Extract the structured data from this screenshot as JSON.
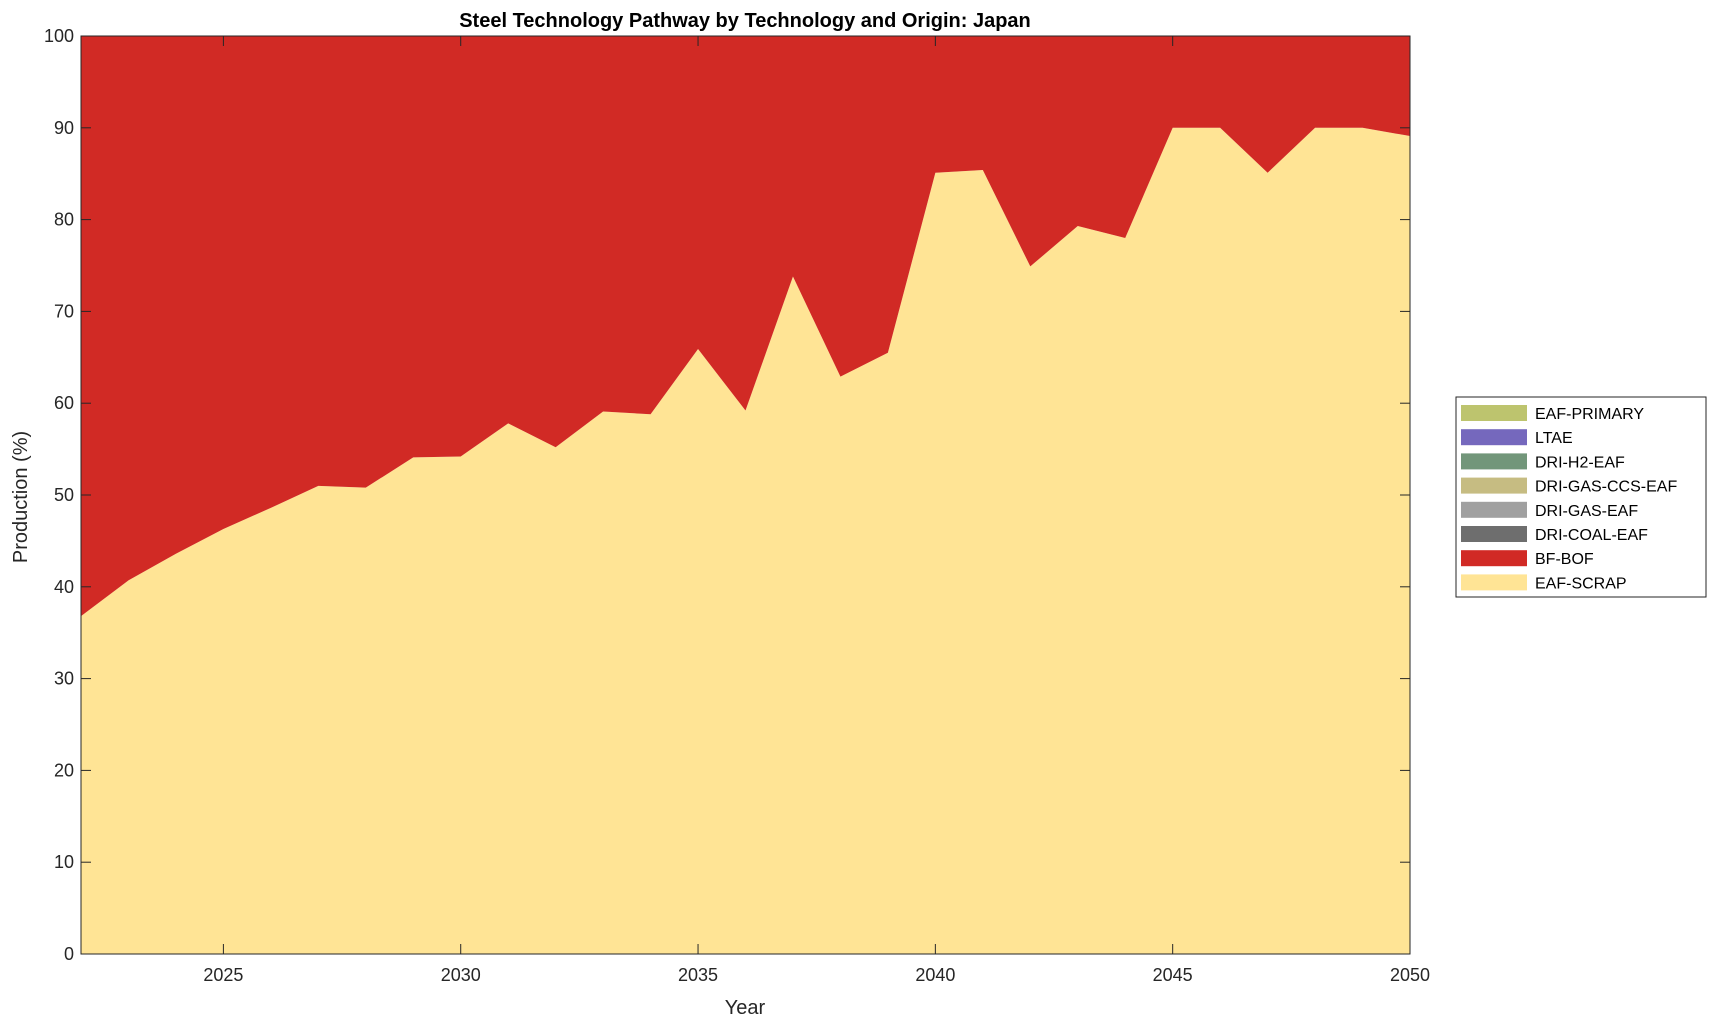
{
  "chart_data": {
    "type": "area",
    "stacked": true,
    "title": "Steel Technology Pathway by Technology and Origin: Japan",
    "xlabel": "Year",
    "ylabel": "Production (%)",
    "xlim": [
      2022,
      2050
    ],
    "ylim": [
      0,
      100
    ],
    "xticks": [
      2025,
      2030,
      2035,
      2040,
      2045,
      2050
    ],
    "yticks": [
      0,
      10,
      20,
      30,
      40,
      50,
      60,
      70,
      80,
      90,
      100
    ],
    "grid": false,
    "legend_position": "right",
    "x": [
      2022,
      2023,
      2024,
      2025,
      2026,
      2027,
      2028,
      2029,
      2030,
      2031,
      2032,
      2033,
      2034,
      2035,
      2036,
      2037,
      2038,
      2039,
      2040,
      2041,
      2042,
      2043,
      2044,
      2045,
      2046,
      2047,
      2048,
      2049,
      2050
    ],
    "series": [
      {
        "name": "EAF-SCRAP",
        "color": "#FFE495",
        "values": [
          36.8,
          40.7,
          43.6,
          46.3,
          48.6,
          51.0,
          50.8,
          54.1,
          54.2,
          57.8,
          55.2,
          59.1,
          58.8,
          65.9,
          59.2,
          73.8,
          62.9,
          65.5,
          85.1,
          85.4,
          74.9,
          79.3,
          78.0,
          90.0,
          90.0,
          85.1,
          90.0,
          90.0,
          89.1
        ]
      },
      {
        "name": "BF-BOF",
        "color": "#D12A25",
        "values": [
          63.2,
          59.3,
          56.4,
          53.7,
          51.4,
          49.0,
          49.2,
          45.9,
          45.8,
          42.2,
          44.8,
          40.9,
          41.2,
          34.1,
          40.8,
          26.2,
          37.1,
          34.5,
          14.9,
          14.6,
          25.1,
          20.7,
          22.0,
          10.0,
          10.0,
          14.9,
          10.0,
          10.0,
          10.9
        ]
      },
      {
        "name": "DRI-COAL-EAF",
        "color": "#6E6E6E",
        "values": [
          0,
          0,
          0,
          0,
          0,
          0,
          0,
          0,
          0,
          0,
          0,
          0,
          0,
          0,
          0,
          0,
          0,
          0,
          0,
          0,
          0,
          0,
          0,
          0,
          0,
          0,
          0,
          0,
          0
        ]
      },
      {
        "name": "DRI-GAS-EAF",
        "color": "#A0A0A0",
        "values": [
          0,
          0,
          0,
          0,
          0,
          0,
          0,
          0,
          0,
          0,
          0,
          0,
          0,
          0,
          0,
          0,
          0,
          0,
          0,
          0,
          0,
          0,
          0,
          0,
          0,
          0,
          0,
          0,
          0
        ]
      },
      {
        "name": "DRI-GAS-CCS-EAF",
        "color": "#C6BC82",
        "values": [
          0,
          0,
          0,
          0,
          0,
          0,
          0,
          0,
          0,
          0,
          0,
          0,
          0,
          0,
          0,
          0,
          0,
          0,
          0,
          0,
          0,
          0,
          0,
          0,
          0,
          0,
          0,
          0,
          0
        ]
      },
      {
        "name": "DRI-H2-EAF",
        "color": "#72967A",
        "values": [
          0,
          0,
          0,
          0,
          0,
          0,
          0,
          0,
          0,
          0,
          0,
          0,
          0,
          0,
          0,
          0,
          0,
          0,
          0,
          0,
          0,
          0,
          0,
          0,
          0,
          0,
          0,
          0,
          0
        ]
      },
      {
        "name": "LTAE",
        "color": "#7568BD",
        "values": [
          0,
          0,
          0,
          0,
          0,
          0,
          0,
          0,
          0,
          0,
          0,
          0,
          0,
          0,
          0,
          0,
          0,
          0,
          0,
          0,
          0,
          0,
          0,
          0,
          0,
          0,
          0,
          0,
          0
        ]
      },
      {
        "name": "EAF-PRIMARY",
        "color": "#BDC46E",
        "values": [
          0,
          0,
          0,
          0,
          0,
          0,
          0,
          0,
          0,
          0,
          0,
          0,
          0,
          0,
          0,
          0,
          0,
          0,
          0,
          0,
          0,
          0,
          0,
          0,
          0,
          0,
          0,
          0,
          0
        ]
      }
    ],
    "legend_order": [
      "EAF-PRIMARY",
      "LTAE",
      "DRI-H2-EAF",
      "DRI-GAS-CCS-EAF",
      "DRI-GAS-EAF",
      "DRI-COAL-EAF",
      "BF-BOF",
      "EAF-SCRAP"
    ]
  }
}
